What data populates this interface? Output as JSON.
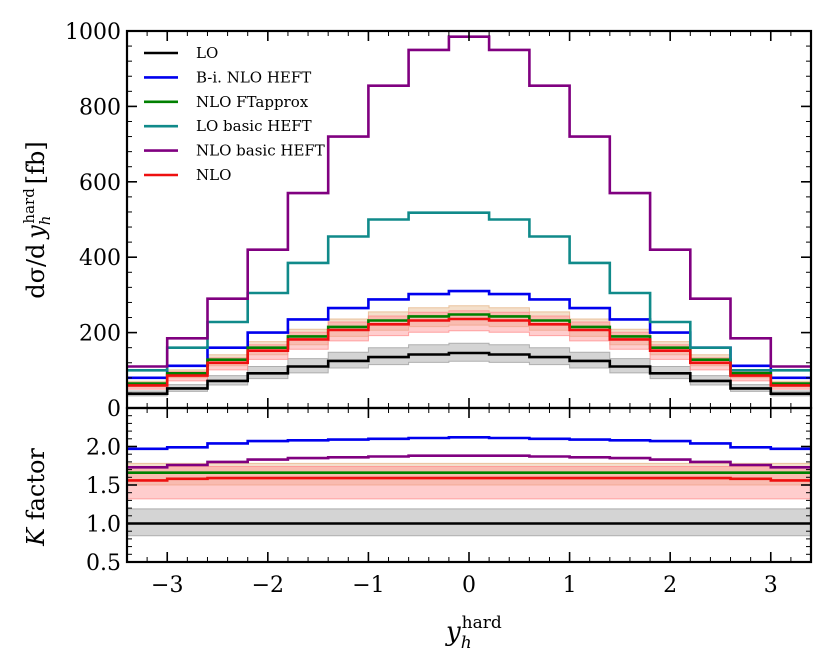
{
  "chart_data": {
    "type": "line",
    "subtype": "step-histogram",
    "bin_edges": [
      -3.4,
      -3.0,
      -2.6,
      -2.2,
      -1.8,
      -1.4,
      -1.0,
      -0.6,
      -0.2,
      0.2,
      0.6,
      1.0,
      1.4,
      1.8,
      2.2,
      2.6,
      3.0,
      3.4
    ],
    "x_ticks": [
      -3,
      -2,
      -1,
      0,
      1,
      2,
      3
    ],
    "x_tick_labels": [
      "−3",
      "−2",
      "−1",
      "0",
      "1",
      "2",
      "3"
    ],
    "xlim": [
      -3.4,
      3.4
    ],
    "xlabel": {
      "base": "y",
      "sub": "h",
      "sup": "hard"
    },
    "top_panel": {
      "ylabel": {
        "prefix": "dσ/d ",
        "var": "y",
        "sub": "h",
        "sup": "hard",
        "unit": "[fb]"
      },
      "ylim": [
        0,
        1000
      ],
      "y_ticks": [
        0,
        200,
        400,
        600,
        800,
        1000
      ],
      "y_tick_labels": [
        "0",
        "200",
        "400",
        "600",
        "800",
        "1000"
      ],
      "series": [
        {
          "name": "LO",
          "color": "#000000",
          "band_color": "#a0a0a0",
          "values": [
            38,
            52,
            72,
            92,
            110,
            125,
            135,
            142,
            146,
            142,
            135,
            125,
            110,
            92,
            72,
            52,
            38
          ],
          "band_low": [
            32,
            44,
            61,
            78,
            93,
            106,
            115,
            121,
            124,
            121,
            115,
            106,
            93,
            78,
            61,
            44,
            32
          ],
          "band_high": [
            45,
            62,
            86,
            110,
            131,
            148,
            160,
            168,
            172,
            168,
            160,
            148,
            131,
            110,
            86,
            62,
            45
          ]
        },
        {
          "name": "B-i. NLO HEFT",
          "color": "#0000ee",
          "values": [
            80,
            112,
            160,
            200,
            235,
            265,
            288,
            302,
            310,
            302,
            288,
            265,
            235,
            200,
            160,
            112,
            80
          ]
        },
        {
          "name": "NLO FTapprox",
          "color": "#008000",
          "band_color": "#e6b88c",
          "values": [
            65,
            92,
            128,
            160,
            190,
            215,
            232,
            243,
            248,
            243,
            232,
            215,
            190,
            160,
            128,
            92,
            65
          ],
          "band_low": [
            56,
            80,
            112,
            141,
            168,
            190,
            206,
            216,
            220,
            216,
            206,
            190,
            168,
            141,
            112,
            80,
            56
          ],
          "band_high": [
            71,
            101,
            141,
            176,
            209,
            236,
            255,
            266,
            271,
            266,
            255,
            236,
            209,
            176,
            141,
            101,
            71
          ]
        },
        {
          "name": "LO basic HEFT",
          "color": "#108a8a",
          "values": [
            100,
            160,
            228,
            305,
            385,
            455,
            500,
            518,
            518,
            500,
            455,
            385,
            305,
            228,
            160,
            100,
            100
          ]
        },
        {
          "name": "NLO basic HEFT",
          "color": "#800080",
          "values": [
            110,
            185,
            290,
            420,
            570,
            720,
            855,
            950,
            985,
            950,
            855,
            720,
            570,
            420,
            290,
            185,
            110
          ]
        },
        {
          "name": "NLO",
          "color": "#ee1010",
          "band_color": "#ff9090",
          "values": [
            60,
            86,
            120,
            152,
            182,
            207,
            222,
            232,
            236,
            232,
            222,
            207,
            182,
            152,
            120,
            86,
            60
          ],
          "band_low": [
            50,
            72,
            101,
            129,
            156,
            178,
            192,
            201,
            205,
            201,
            192,
            178,
            156,
            129,
            101,
            72,
            50
          ],
          "band_high": [
            67,
            96,
            133,
            168,
            201,
            228,
            244,
            254,
            258,
            254,
            244,
            228,
            201,
            168,
            133,
            96,
            67
          ]
        }
      ],
      "legend_position": "top-left"
    },
    "bottom_panel": {
      "ylabel": {
        "var": "K",
        "text": " factor"
      },
      "ylim": [
        0.5,
        2.5
      ],
      "y_ticks": [
        0.5,
        1.0,
        1.5,
        2.0
      ],
      "y_tick_labels": [
        "0.5",
        "1.0",
        "1.5",
        "2.0"
      ],
      "series": [
        {
          "name": "LO",
          "color": "#000000",
          "band_color": "#a0a0a0",
          "values": [
            1.0,
            1.0,
            1.0,
            1.0,
            1.0,
            1.0,
            1.0,
            1.0,
            1.0,
            1.0,
            1.0,
            1.0,
            1.0,
            1.0,
            1.0,
            1.0,
            1.0
          ],
          "band_low": [
            0.84,
            0.84,
            0.84,
            0.84,
            0.84,
            0.84,
            0.84,
            0.84,
            0.84,
            0.84,
            0.84,
            0.84,
            0.84,
            0.84,
            0.84,
            0.84,
            0.84
          ],
          "band_high": [
            1.19,
            1.19,
            1.19,
            1.19,
            1.19,
            1.19,
            1.19,
            1.19,
            1.19,
            1.19,
            1.19,
            1.19,
            1.19,
            1.19,
            1.19,
            1.19,
            1.19
          ]
        },
        {
          "name": "B-i. NLO HEFT",
          "color": "#0000ee",
          "values": [
            1.97,
            1.99,
            2.04,
            2.07,
            2.08,
            2.09,
            2.1,
            2.11,
            2.12,
            2.11,
            2.1,
            2.09,
            2.08,
            2.07,
            2.04,
            1.99,
            1.97
          ]
        },
        {
          "name": "NLO FTapprox",
          "color": "#008000",
          "band_color": "#e6b88c",
          "values": [
            1.66,
            1.66,
            1.66,
            1.66,
            1.66,
            1.66,
            1.66,
            1.66,
            1.66,
            1.66,
            1.66,
            1.66,
            1.66,
            1.66,
            1.66,
            1.66,
            1.66
          ],
          "band_low": [
            1.5,
            1.5,
            1.5,
            1.5,
            1.5,
            1.5,
            1.5,
            1.5,
            1.5,
            1.5,
            1.5,
            1.5,
            1.5,
            1.5,
            1.5,
            1.5,
            1.5
          ],
          "band_high": [
            1.78,
            1.78,
            1.78,
            1.78,
            1.78,
            1.78,
            1.78,
            1.78,
            1.78,
            1.78,
            1.78,
            1.78,
            1.78,
            1.78,
            1.78,
            1.78,
            1.78
          ]
        },
        {
          "name": "NLO basic HEFT",
          "color": "#800080",
          "values": [
            1.73,
            1.76,
            1.8,
            1.83,
            1.85,
            1.86,
            1.87,
            1.88,
            1.88,
            1.88,
            1.87,
            1.86,
            1.85,
            1.83,
            1.8,
            1.76,
            1.73
          ]
        },
        {
          "name": "NLO",
          "color": "#ee1010",
          "band_color": "#ff9090",
          "values": [
            1.56,
            1.58,
            1.59,
            1.59,
            1.59,
            1.59,
            1.59,
            1.59,
            1.59,
            1.59,
            1.59,
            1.59,
            1.59,
            1.59,
            1.59,
            1.58,
            1.56
          ],
          "band_low": [
            1.32,
            1.32,
            1.32,
            1.32,
            1.32,
            1.32,
            1.32,
            1.32,
            1.32,
            1.32,
            1.32,
            1.32,
            1.32,
            1.32,
            1.32,
            1.32,
            1.32
          ],
          "band_high": [
            1.74,
            1.74,
            1.74,
            1.74,
            1.74,
            1.74,
            1.74,
            1.74,
            1.74,
            1.74,
            1.74,
            1.74,
            1.74,
            1.74,
            1.74,
            1.74,
            1.74
          ]
        }
      ]
    }
  }
}
